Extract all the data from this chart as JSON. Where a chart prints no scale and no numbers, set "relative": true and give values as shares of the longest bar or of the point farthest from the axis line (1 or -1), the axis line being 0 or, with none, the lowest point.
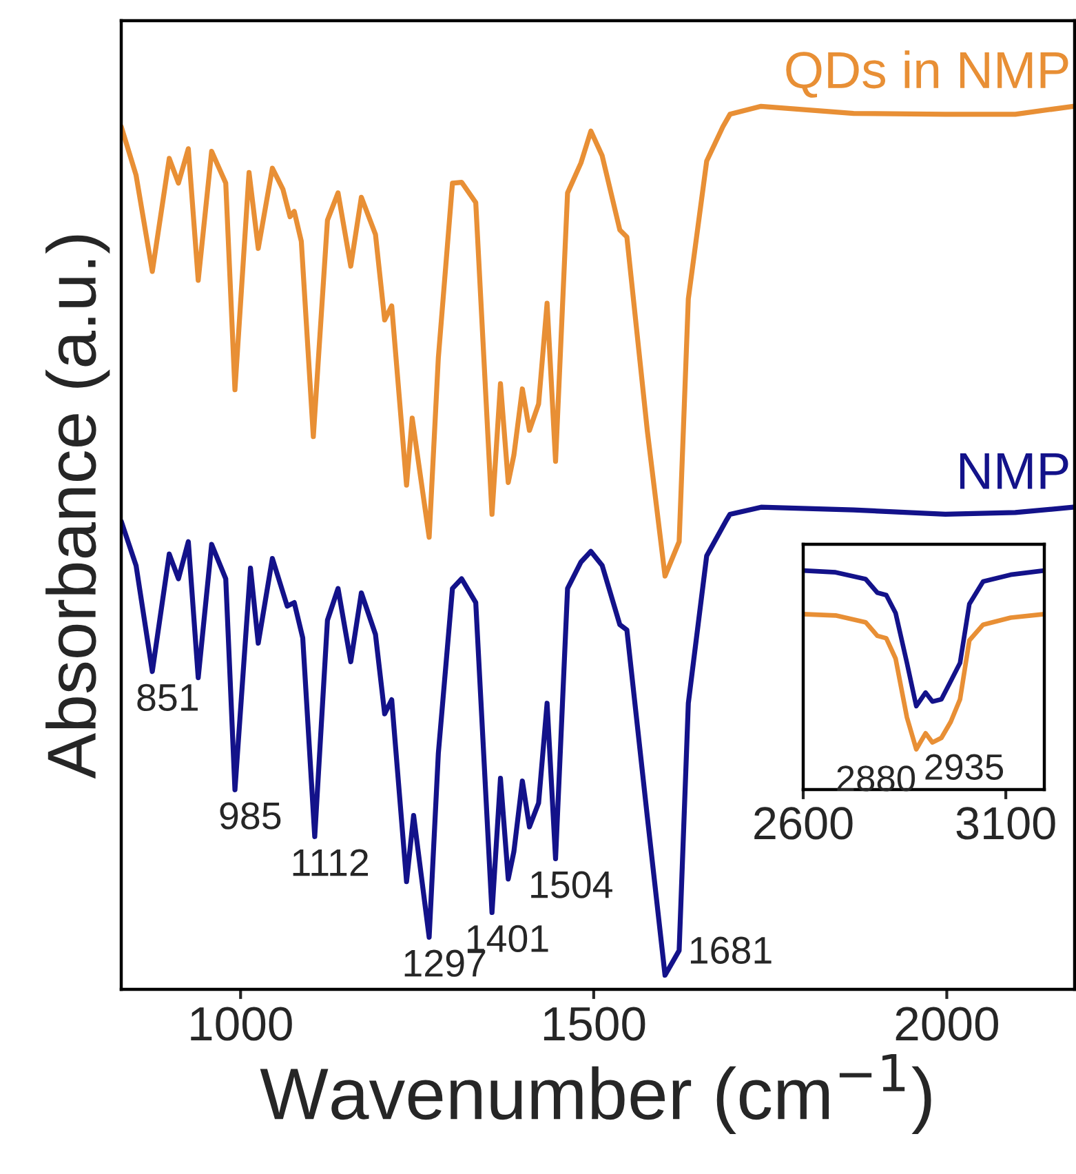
{
  "chart_data": [
    {
      "type": "line",
      "relative": true,
      "xlabel": "Wavenumber (cm$^{−1}$)",
      "ylabel": "Absorbance (a.u.)",
      "xlim": [
        831,
        2181
      ],
      "xticks": [
        1000,
        1500,
        2000
      ],
      "tick_labels": "x",
      "legend": false,
      "grid": false,
      "series": [
        {
          "name": "QDs in NMP",
          "color": "#e88f35",
          "x": [
            831,
            852,
            875,
            899,
            912,
            926,
            940,
            959,
            979,
            992,
            1012,
            1025,
            1045,
            1060,
            1070,
            1076,
            1086,
            1103,
            1123,
            1138,
            1156,
            1171,
            1191,
            1204,
            1214,
            1235,
            1243,
            1267,
            1280,
            1300,
            1313,
            1333,
            1356,
            1368,
            1379,
            1387,
            1399,
            1409,
            1422,
            1434,
            1446,
            1463,
            1482,
            1496,
            1512,
            1537,
            1547,
            1576,
            1601,
            1621,
            1634,
            1660,
            1683,
            1693,
            1737,
            1868,
            1998,
            2097,
            2179
          ],
          "values": [
            0.977,
            0.922,
            0.813,
            0.941,
            0.913,
            0.952,
            0.803,
            0.949,
            0.913,
            0.679,
            0.925,
            0.839,
            0.93,
            0.906,
            0.875,
            0.881,
            0.847,
            0.626,
            0.871,
            0.902,
            0.819,
            0.897,
            0.855,
            0.758,
            0.774,
            0.571,
            0.647,
            0.512,
            0.715,
            0.913,
            0.914,
            0.891,
            0.538,
            0.686,
            0.574,
            0.605,
            0.68,
            0.633,
            0.663,
            0.777,
            0.598,
            0.902,
            0.936,
            0.972,
            0.944,
            0.86,
            0.852,
            0.632,
            0.468,
            0.507,
            0.782,
            0.938,
            0.977,
            0.991,
            1.0,
            0.992,
            0.991,
            0.991,
            1.0
          ]
        },
        {
          "name": "NMP",
          "color": "#13128a",
          "x": [
            831,
            852,
            875,
            899,
            912,
            926,
            940,
            959,
            979,
            992,
            1014,
            1025,
            1045,
            1066,
            1076,
            1088,
            1105,
            1123,
            1138,
            1156,
            1171,
            1191,
            1204,
            1214,
            1235,
            1245,
            1267,
            1280,
            1300,
            1313,
            1333,
            1356,
            1368,
            1379,
            1387,
            1399,
            1409,
            1422,
            1434,
            1446,
            1463,
            1482,
            1496,
            1512,
            1537,
            1547,
            1576,
            1601,
            1621,
            1634,
            1660,
            1687,
            1693,
            1737,
            1868,
            1998,
            2097,
            2179
          ],
          "values": [
            0.53,
            0.48,
            0.36,
            0.493,
            0.465,
            0.507,
            0.353,
            0.504,
            0.465,
            0.226,
            0.477,
            0.392,
            0.488,
            0.434,
            0.438,
            0.398,
            0.173,
            0.418,
            0.454,
            0.371,
            0.449,
            0.402,
            0.312,
            0.328,
            0.122,
            0.197,
            0.059,
            0.267,
            0.454,
            0.465,
            0.438,
            0.087,
            0.239,
            0.125,
            0.156,
            0.236,
            0.184,
            0.211,
            0.324,
            0.148,
            0.454,
            0.484,
            0.496,
            0.48,
            0.413,
            0.407,
            0.195,
            0.016,
            0.044,
            0.324,
            0.491,
            0.53,
            0.538,
            0.546,
            0.543,
            0.538,
            0.54,
            0.546
          ]
        }
      ],
      "annotations": [
        {
          "text": "851",
          "x": 875,
          "y": 0.36
        },
        {
          "text": "985",
          "x": 992,
          "y": 0.226
        },
        {
          "text": "1112",
          "x": 1105,
          "y": 0.173
        },
        {
          "text": "1297",
          "x": 1267,
          "y": 0.059
        },
        {
          "text": "1401",
          "x": 1356,
          "y": 0.087
        },
        {
          "text": "1504",
          "x": 1446,
          "y": 0.148
        },
        {
          "text": "1681",
          "x": 1601,
          "y": 0.016
        }
      ]
    },
    {
      "type": "line",
      "relative": true,
      "xlim": [
        2600,
        3195
      ],
      "xticks": [
        2600,
        3100
      ],
      "tick_labels": "x",
      "legend": false,
      "grid": false,
      "series": [
        {
          "color": "#13128a",
          "x": [
            2600,
            2680,
            2754,
            2783,
            2805,
            2828,
            2856,
            2879,
            2902,
            2919,
            2941,
            2964,
            2987,
            3010,
            3044,
            3112,
            3195
          ],
          "values": [
            1.0,
            0.992,
            0.961,
            0.899,
            0.888,
            0.806,
            0.578,
            0.381,
            0.443,
            0.402,
            0.412,
            0.495,
            0.578,
            0.847,
            0.95,
            0.981,
            1.0
          ]
        },
        {
          "color": "#e88f35",
          "x": [
            2600,
            2680,
            2754,
            2783,
            2805,
            2828,
            2856,
            2879,
            2902,
            2919,
            2941,
            2964,
            2987,
            3010,
            3044,
            3112,
            3195
          ],
          "values": [
            0.801,
            0.795,
            0.764,
            0.702,
            0.691,
            0.598,
            0.329,
            0.184,
            0.257,
            0.215,
            0.236,
            0.309,
            0.412,
            0.681,
            0.753,
            0.785,
            0.801
          ]
        }
      ],
      "annotations": [
        {
          "text": "2880",
          "x": 2879,
          "y": 0.184
        },
        {
          "text": "2935",
          "x": 2935,
          "y": 0.236
        }
      ]
    }
  ]
}
